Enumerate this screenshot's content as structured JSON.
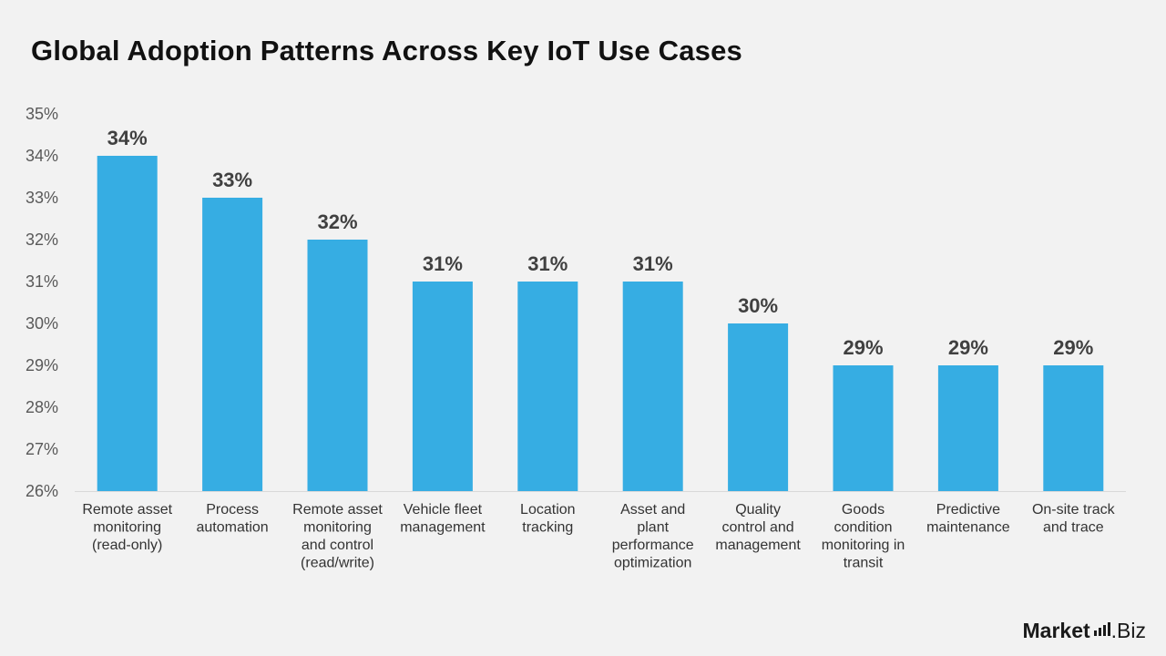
{
  "chart_data": {
    "type": "bar",
    "title": "Global Adoption Patterns Across Key IoT Use Cases",
    "categories": [
      "Remote asset monitoring (read-only)",
      "Process automation",
      "Remote asset monitoring and control (read/write)",
      "Vehicle fleet management",
      "Location tracking",
      "Asset and plant performance optimization",
      "Quality control and management",
      "Goods condition monitoring in transit",
      "Predictive maintenance",
      "On-site track and trace"
    ],
    "category_lines": [
      [
        "Remote asset",
        "monitoring",
        "(read-only)"
      ],
      [
        "Process",
        "automation"
      ],
      [
        "Remote asset",
        "monitoring",
        "and control",
        "(read/write)"
      ],
      [
        "Vehicle fleet",
        "management"
      ],
      [
        "Location",
        "tracking"
      ],
      [
        "Asset and",
        "plant",
        "performance",
        "optimization"
      ],
      [
        "Quality",
        "control and",
        "management"
      ],
      [
        "Goods",
        "condition",
        "monitoring in",
        "transit"
      ],
      [
        "Predictive",
        "maintenance"
      ],
      [
        "On-site track",
        "and trace"
      ]
    ],
    "values": [
      34,
      33,
      32,
      31,
      31,
      31,
      30,
      29,
      29,
      29
    ],
    "data_labels": [
      "34%",
      "33%",
      "32%",
      "31%",
      "31%",
      "31%",
      "30%",
      "29%",
      "29%",
      "29%"
    ],
    "ylim": [
      26,
      35
    ],
    "yticks": [
      "26%",
      "27%",
      "28%",
      "29%",
      "30%",
      "31%",
      "32%",
      "33%",
      "34%",
      "35%"
    ],
    "xlabel": "",
    "ylabel": "",
    "grid": false,
    "bar_color": "#36ade3"
  },
  "brand": {
    "name": "Market",
    "suffix": ".Biz"
  }
}
